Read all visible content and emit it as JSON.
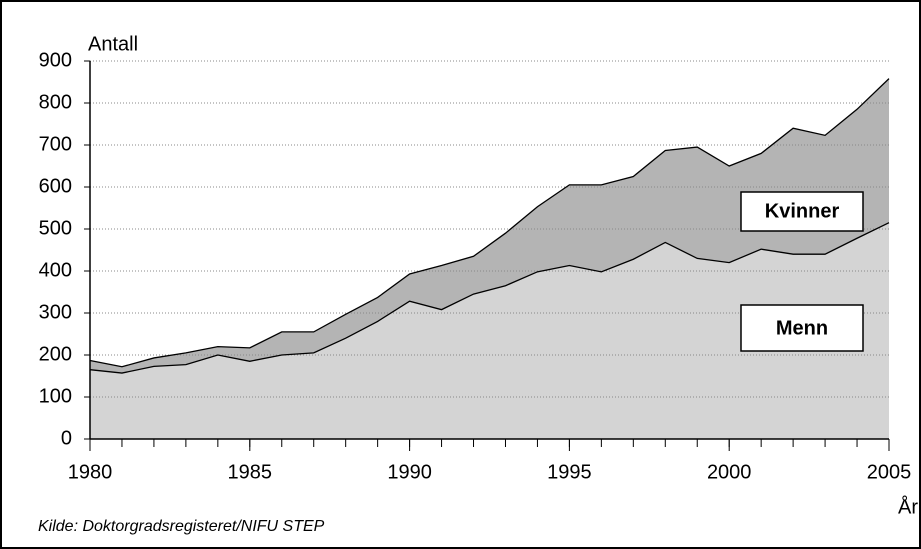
{
  "chart_data": {
    "type": "stacked_area",
    "ylabel": "Antall",
    "xlabel": "År",
    "source": "Kilde:  Doktorgradsregisteret/NIFU STEP",
    "x": [
      1980,
      1981,
      1982,
      1983,
      1984,
      1985,
      1986,
      1987,
      1988,
      1989,
      1990,
      1991,
      1992,
      1993,
      1994,
      1995,
      1996,
      1997,
      1998,
      1999,
      2000,
      2001,
      2002,
      2003,
      2004,
      2005
    ],
    "series": [
      {
        "name": "Menn",
        "color": "#d4d4d4",
        "values": [
          165,
          157,
          173,
          177,
          200,
          185,
          200,
          205,
          240,
          280,
          328,
          308,
          345,
          365,
          398,
          413,
          398,
          428,
          468,
          430,
          420,
          452,
          440,
          440,
          478,
          515
        ]
      },
      {
        "name": "Kvinner",
        "color": "#b4b4b4",
        "values": [
          22,
          15,
          20,
          28,
          20,
          32,
          55,
          50,
          57,
          57,
          65,
          105,
          90,
          125,
          155,
          192,
          207,
          197,
          219,
          265,
          230,
          228,
          300,
          283,
          307,
          343
        ]
      }
    ],
    "xlim": [
      1980,
      2005
    ],
    "xticks": [
      1980,
      1985,
      1990,
      1995,
      2000,
      2005
    ],
    "ylim": [
      0,
      900
    ],
    "yticks": [
      0,
      100,
      200,
      300,
      400,
      500,
      600,
      700,
      800,
      900
    ],
    "grid": true
  }
}
